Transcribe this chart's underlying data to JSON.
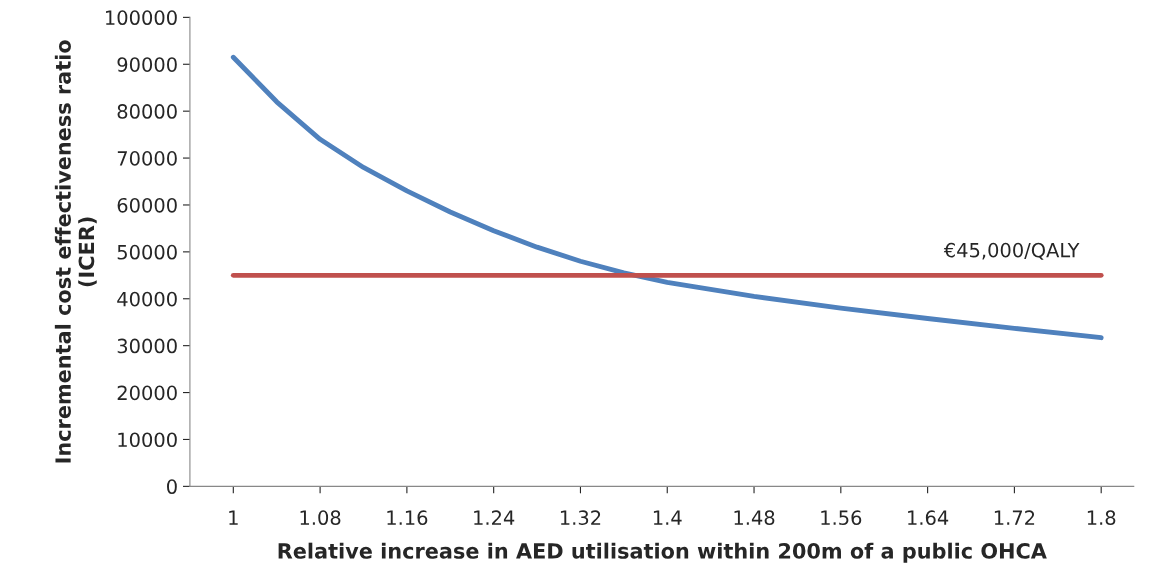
{
  "chart_data": {
    "type": "line",
    "xlabel": "Relative increase in AED utilisation within 200m of a public OHCA",
    "ylabel": "Incremental cost effectiveness ratio\n(ICER)",
    "x": [
      1,
      1.04,
      1.08,
      1.12,
      1.16,
      1.2,
      1.24,
      1.28,
      1.32,
      1.36,
      1.4,
      1.48,
      1.56,
      1.64,
      1.72,
      1.8
    ],
    "series": [
      {
        "color": "#4f81bd",
        "values": [
          91500,
          82000,
          74000,
          68000,
          63000,
          58500,
          54500,
          51000,
          48000,
          45500,
          43500,
          40500,
          38000,
          35800,
          33700,
          31700
        ]
      }
    ],
    "xlim": [
      0.96,
      1.83
    ],
    "xticks": [
      1,
      1.08,
      1.16,
      1.24,
      1.32,
      1.4,
      1.48,
      1.56,
      1.64,
      1.72,
      1.8
    ],
    "ylim": [
      0,
      100000
    ],
    "yticks": [
      0,
      10000,
      20000,
      30000,
      40000,
      50000,
      60000,
      70000,
      80000,
      90000,
      100000
    ],
    "ref_lines": [
      {
        "axis": "y",
        "value": 45000,
        "label": "€45,000/QALY",
        "color": "#c0504d"
      }
    ],
    "grid": false,
    "legend": false,
    "marker": "none",
    "line_style": "solid"
  }
}
